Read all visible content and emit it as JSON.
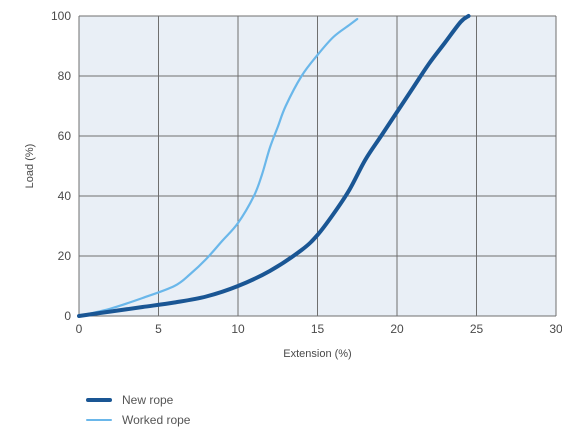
{
  "chart_data": {
    "type": "line",
    "title": "",
    "xlabel": "Extension (%)",
    "ylabel": "Load (%)",
    "xlim": [
      0,
      30
    ],
    "ylim": [
      0,
      100
    ],
    "xticks": [
      0,
      5,
      10,
      15,
      20,
      25,
      30
    ],
    "yticks": [
      0,
      20,
      40,
      60,
      80,
      100
    ],
    "grid": true,
    "legend_position": "bottom-left",
    "background_color": "#e9eff6",
    "grid_color": "#6f6f6f",
    "series": [
      {
        "name": "New rope",
        "color": "#1a5694",
        "stroke": "thick",
        "x": [
          0,
          2,
          4,
          6,
          8,
          10,
          12,
          14,
          15,
          16,
          17,
          18,
          19,
          20,
          21,
          22,
          23,
          24,
          24.5
        ],
        "y": [
          0,
          1.5,
          3,
          4.5,
          6.5,
          10,
          15,
          22,
          27,
          34,
          42,
          52,
          60,
          68,
          76,
          84,
          91,
          98,
          100
        ]
      },
      {
        "name": "Worked rope",
        "color": "#6ab7ea",
        "stroke": "thin",
        "x": [
          0,
          2,
          4,
          6,
          7,
          8,
          9,
          10,
          11,
          11.5,
          12,
          12.5,
          13,
          14,
          15,
          16,
          17,
          17.5
        ],
        "y": [
          0,
          2.5,
          6,
          10,
          14,
          19,
          25,
          31,
          40,
          47,
          56,
          63,
          70,
          80,
          87,
          93,
          97,
          99
        ]
      }
    ]
  }
}
